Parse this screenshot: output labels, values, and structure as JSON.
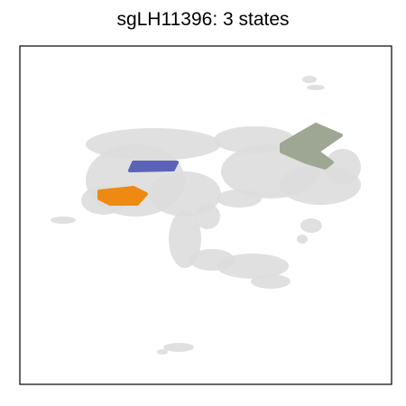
{
  "chart_data": {
    "type": "scatter",
    "title": "sgLH11396: 3 states",
    "xlabel": "",
    "ylabel": "",
    "grid": false,
    "colors": {
      "background_cells": "#dddddd",
      "state_1": "#5b63b8",
      "state_2": "#ee8a12",
      "state_3": "#9ea793"
    },
    "background_shapes": [
      {
        "kind": "ellipse",
        "cx": 170,
        "cy": 160,
        "rx": 75,
        "ry": 18
      },
      {
        "kind": "ellipse",
        "cx": 150,
        "cy": 200,
        "rx": 55,
        "ry": 40
      },
      {
        "kind": "ellipse",
        "cx": 205,
        "cy": 215,
        "rx": 40,
        "ry": 25
      },
      {
        "kind": "ellipse",
        "cx": 115,
        "cy": 222,
        "rx": 25,
        "ry": 16
      },
      {
        "kind": "ellipse",
        "cx": 70,
        "cy": 244,
        "rx": 14,
        "ry": 4
      },
      {
        "kind": "ellipse",
        "cx": 230,
        "cy": 240,
        "rx": 14,
        "ry": 14
      },
      {
        "kind": "ellipse",
        "cx": 205,
        "cy": 265,
        "rx": 18,
        "ry": 32
      },
      {
        "kind": "ellipse",
        "cx": 235,
        "cy": 288,
        "rx": 25,
        "ry": 12
      },
      {
        "kind": "ellipse",
        "cx": 280,
        "cy": 295,
        "rx": 40,
        "ry": 14
      },
      {
        "kind": "ellipse",
        "cx": 300,
        "cy": 312,
        "rx": 22,
        "ry": 8
      },
      {
        "kind": "ellipse",
        "cx": 345,
        "cy": 250,
        "rx": 12,
        "ry": 8
      },
      {
        "kind": "ellipse",
        "cx": 335,
        "cy": 265,
        "rx": 6,
        "ry": 5
      },
      {
        "kind": "ellipse",
        "cx": 282,
        "cy": 155,
        "rx": 45,
        "ry": 15
      },
      {
        "kind": "ellipse",
        "cx": 300,
        "cy": 190,
        "rx": 55,
        "ry": 30
      },
      {
        "kind": "ellipse",
        "cx": 355,
        "cy": 205,
        "rx": 45,
        "ry": 22
      },
      {
        "kind": "ellipse",
        "cx": 380,
        "cy": 185,
        "rx": 20,
        "ry": 20
      },
      {
        "kind": "ellipse",
        "cx": 265,
        "cy": 220,
        "rx": 25,
        "ry": 10
      },
      {
        "kind": "ellipse",
        "cx": 343,
        "cy": 88,
        "rx": 8,
        "ry": 4
      },
      {
        "kind": "ellipse",
        "cx": 350,
        "cy": 97,
        "rx": 10,
        "ry": 3
      },
      {
        "kind": "ellipse",
        "cx": 198,
        "cy": 385,
        "rx": 17,
        "ry": 5
      },
      {
        "kind": "ellipse",
        "cx": 180,
        "cy": 390,
        "rx": 6,
        "ry": 3
      }
    ],
    "series": [
      {
        "points": [
          [
            148,
            180
          ],
          [
            196,
            180
          ],
          [
            192,
            188
          ],
          [
            144,
            189
          ]
        ]
      },
      {
        "points": [
          [
            110,
            212
          ],
          [
            148,
            208
          ],
          [
            162,
            215
          ],
          [
            152,
            226
          ],
          [
            122,
            226
          ],
          [
            110,
            220
          ]
        ]
      },
      {
        "points": [
          [
            312,
            160
          ],
          [
            350,
            138
          ],
          [
            378,
            150
          ],
          [
            352,
            168
          ],
          [
            368,
            180
          ],
          [
            360,
            186
          ],
          [
            340,
            180
          ],
          [
            312,
            168
          ]
        ]
      }
    ]
  }
}
